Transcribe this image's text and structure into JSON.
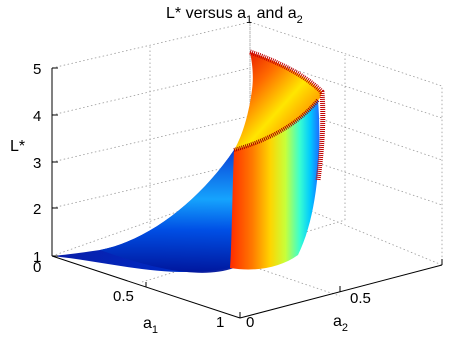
{
  "chart_data": {
    "type": "surface",
    "title": {
      "main": "L* versus a",
      "sub1": "1",
      "mid": " and a",
      "sub2": "2"
    },
    "xlabel": {
      "main": "a",
      "sub": "1"
    },
    "ylabel": {
      "main": "a",
      "sub": "2"
    },
    "zlabel": "L*",
    "xlim": [
      0,
      1
    ],
    "ylim": [
      0,
      1
    ],
    "zlim": [
      1,
      5
    ],
    "xticks": [
      "0",
      "0.5",
      "1"
    ],
    "yticks": [
      "0",
      "0.5"
    ],
    "zticks": [
      "1",
      "2",
      "3",
      "4",
      "5"
    ],
    "grid": true,
    "colormap": "jet",
    "surface_description_points": [
      {
        "a1": 0.0,
        "a2": 0.0,
        "L": 1.0
      },
      {
        "a1": 0.9,
        "a2": 0.1,
        "L": 1.5
      },
      {
        "a1": 1.0,
        "a2": 0.3,
        "L": 3.4
      },
      {
        "a1": 1.0,
        "a2": 0.85,
        "L": 4.6
      },
      {
        "a1": 1.0,
        "a2": 1.0,
        "L": 5.0
      }
    ]
  },
  "colors": {
    "low": "#00008f",
    "mid": "#00ffff",
    "high": "#800000"
  }
}
